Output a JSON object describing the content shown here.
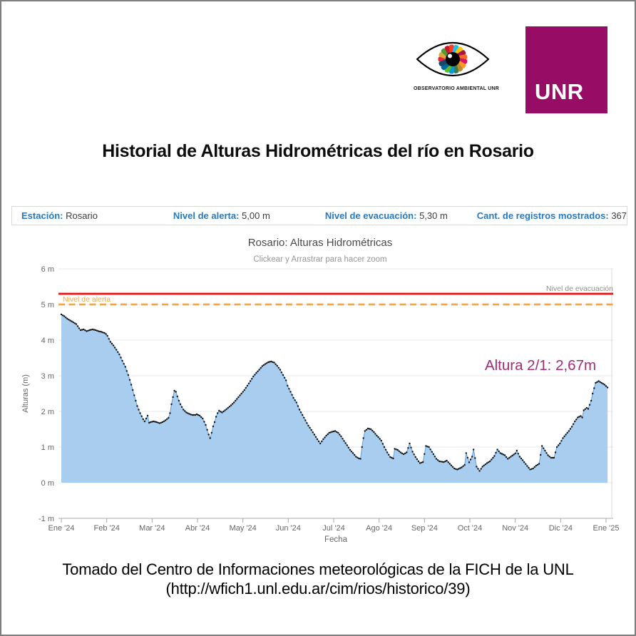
{
  "header": {
    "observatory_logo_caption": "OBSERVATORIO AMBIENTAL UNR",
    "unr_logo_text": "UNR",
    "unr_color": "#970d66"
  },
  "title": "Historial de Alturas Hidrométricas del río en Rosario",
  "info_bar": {
    "label_color": "#2779be",
    "items": [
      {
        "label": "Estación:",
        "value": "Rosario"
      },
      {
        "label": "Nivel de alerta:",
        "value": "5,00 m"
      },
      {
        "label": "Nivel de evacuación:",
        "value": "5,30 m"
      },
      {
        "label": "Cant. de registros mostrados:",
        "value": "367"
      }
    ]
  },
  "chart_data": {
    "type": "area",
    "title": "Rosario: Alturas Hidrométricas",
    "subtitle": "Clickear y Arrastrar para hacer zoom",
    "xlabel": "Fecha",
    "ylabel": "Alturas (m)",
    "ylim": [
      -1,
      6
    ],
    "grid": true,
    "y_ticks": [
      {
        "value": 6,
        "label": "6 m"
      },
      {
        "value": 5,
        "label": "5 m"
      },
      {
        "value": 4,
        "label": "4 m"
      },
      {
        "value": 3,
        "label": "3 m"
      },
      {
        "value": 2,
        "label": "2 m"
      },
      {
        "value": 1,
        "label": "1 m"
      },
      {
        "value": 0,
        "label": "0 m"
      },
      {
        "value": -1,
        "label": "-1 m"
      }
    ],
    "x_ticks": [
      "Ene '24",
      "Feb '24",
      "Mar '24",
      "Abr '24",
      "May '24",
      "Jun '24",
      "Jul '24",
      "Ago '24",
      "Sep '24",
      "Oct '24",
      "Nov '24",
      "Dic '24",
      "Ene '25"
    ],
    "days_per_year": 366,
    "total_points": 367,
    "alert_line": {
      "label": "Nivel de alerta",
      "value": 5.0,
      "color": "#eda84a",
      "style": "dashed"
    },
    "evacuation_line": {
      "label": "Nivel de evacuación",
      "value": 5.3,
      "color": "#fb100d",
      "style": "solid",
      "label_color": "#908f85"
    },
    "annotation": {
      "text": "Altura 2/1: 2,67m",
      "color": "#a02d76"
    },
    "area_fill": "#a8cdef",
    "line_color": "#5f9fdc",
    "dot_color": "#141414",
    "points": [
      [
        0,
        4.72
      ],
      [
        2,
        4.67
      ],
      [
        4,
        4.6
      ],
      [
        6,
        4.55
      ],
      [
        8,
        4.5
      ],
      [
        10,
        4.45
      ],
      [
        12,
        4.33
      ],
      [
        13,
        4.28
      ],
      [
        15,
        4.3
      ],
      [
        17,
        4.25
      ],
      [
        19,
        4.28
      ],
      [
        21,
        4.3
      ],
      [
        23,
        4.28
      ],
      [
        25,
        4.25
      ],
      [
        27,
        4.23
      ],
      [
        29,
        4.2
      ],
      [
        30,
        4.17
      ],
      [
        31,
        4.12
      ],
      [
        33,
        3.95
      ],
      [
        35,
        3.85
      ],
      [
        37,
        3.73
      ],
      [
        39,
        3.6
      ],
      [
        41,
        3.42
      ],
      [
        43,
        3.25
      ],
      [
        45,
        3.02
      ],
      [
        47,
        2.75
      ],
      [
        49,
        2.45
      ],
      [
        51,
        2.15
      ],
      [
        53,
        1.95
      ],
      [
        55,
        1.78
      ],
      [
        56,
        1.72
      ],
      [
        57,
        1.8
      ],
      [
        58,
        1.88
      ],
      [
        59,
        1.68
      ],
      [
        60,
        1.7
      ],
      [
        62,
        1.72
      ],
      [
        64,
        1.7
      ],
      [
        66,
        1.67
      ],
      [
        68,
        1.7
      ],
      [
        70,
        1.75
      ],
      [
        72,
        1.82
      ],
      [
        73,
        1.95
      ],
      [
        74,
        2.2
      ],
      [
        75,
        2.4
      ],
      [
        76,
        2.58
      ],
      [
        77,
        2.55
      ],
      [
        78,
        2.42
      ],
      [
        79,
        2.3
      ],
      [
        80,
        2.2
      ],
      [
        82,
        2.05
      ],
      [
        84,
        1.97
      ],
      [
        86,
        1.93
      ],
      [
        88,
        1.9
      ],
      [
        90,
        1.9
      ],
      [
        91,
        1.92
      ],
      [
        93,
        1.88
      ],
      [
        95,
        1.8
      ],
      [
        97,
        1.62
      ],
      [
        99,
        1.35
      ],
      [
        100,
        1.25
      ],
      [
        101,
        1.4
      ],
      [
        102,
        1.58
      ],
      [
        103,
        1.7
      ],
      [
        104,
        1.85
      ],
      [
        105,
        1.95
      ],
      [
        106,
        2.02
      ],
      [
        108,
        1.97
      ],
      [
        110,
        2.03
      ],
      [
        112,
        2.1
      ],
      [
        114,
        2.17
      ],
      [
        116,
        2.25
      ],
      [
        118,
        2.35
      ],
      [
        120,
        2.45
      ],
      [
        121,
        2.5
      ],
      [
        123,
        2.6
      ],
      [
        125,
        2.72
      ],
      [
        127,
        2.85
      ],
      [
        129,
        2.98
      ],
      [
        131,
        3.08
      ],
      [
        133,
        3.17
      ],
      [
        135,
        3.27
      ],
      [
        137,
        3.33
      ],
      [
        139,
        3.38
      ],
      [
        141,
        3.4
      ],
      [
        143,
        3.37
      ],
      [
        145,
        3.28
      ],
      [
        147,
        3.17
      ],
      [
        149,
        3.02
      ],
      [
        151,
        2.87
      ],
      [
        152,
        2.72
      ],
      [
        154,
        2.55
      ],
      [
        156,
        2.38
      ],
      [
        158,
        2.25
      ],
      [
        160,
        2.05
      ],
      [
        162,
        1.9
      ],
      [
        164,
        1.75
      ],
      [
        166,
        1.6
      ],
      [
        168,
        1.48
      ],
      [
        170,
        1.35
      ],
      [
        172,
        1.22
      ],
      [
        174,
        1.1
      ],
      [
        176,
        1.22
      ],
      [
        178,
        1.32
      ],
      [
        180,
        1.4
      ],
      [
        182,
        1.43
      ],
      [
        184,
        1.45
      ],
      [
        186,
        1.4
      ],
      [
        188,
        1.3
      ],
      [
        190,
        1.17
      ],
      [
        192,
        1.05
      ],
      [
        194,
        0.92
      ],
      [
        196,
        0.83
      ],
      [
        198,
        0.73
      ],
      [
        200,
        0.68
      ],
      [
        201,
        0.67
      ],
      [
        202,
        1.0
      ],
      [
        203,
        1.25
      ],
      [
        204,
        1.45
      ],
      [
        206,
        1.52
      ],
      [
        208,
        1.5
      ],
      [
        210,
        1.42
      ],
      [
        212,
        1.32
      ],
      [
        213,
        1.28
      ],
      [
        215,
        1.18
      ],
      [
        217,
        1.0
      ],
      [
        219,
        0.85
      ],
      [
        221,
        0.72
      ],
      [
        223,
        0.68
      ],
      [
        224,
        0.95
      ],
      [
        226,
        0.92
      ],
      [
        228,
        0.85
      ],
      [
        230,
        0.8
      ],
      [
        232,
        0.85
      ],
      [
        234,
        1.1
      ],
      [
        236,
        0.87
      ],
      [
        238,
        0.72
      ],
      [
        240,
        0.6
      ],
      [
        241,
        0.55
      ],
      [
        243,
        0.58
      ],
      [
        245,
        1.03
      ],
      [
        247,
        1.0
      ],
      [
        250,
        0.8
      ],
      [
        252,
        0.67
      ],
      [
        254,
        0.6
      ],
      [
        257,
        0.58
      ],
      [
        259,
        0.62
      ],
      [
        261,
        0.53
      ],
      [
        264,
        0.4
      ],
      [
        266,
        0.37
      ],
      [
        269,
        0.43
      ],
      [
        271,
        0.5
      ],
      [
        272,
        0.83
      ],
      [
        274,
        0.57
      ],
      [
        276,
        0.73
      ],
      [
        277,
        0.93
      ],
      [
        279,
        0.45
      ],
      [
        281,
        0.33
      ],
      [
        283,
        0.45
      ],
      [
        286,
        0.55
      ],
      [
        288,
        0.6
      ],
      [
        291,
        0.75
      ],
      [
        293,
        0.93
      ],
      [
        295,
        0.83
      ],
      [
        298,
        0.77
      ],
      [
        300,
        0.67
      ],
      [
        302,
        0.73
      ],
      [
        305,
        0.82
      ],
      [
        306,
        0.9
      ],
      [
        308,
        0.73
      ],
      [
        310,
        0.63
      ],
      [
        313,
        0.47
      ],
      [
        315,
        0.37
      ],
      [
        317,
        0.4
      ],
      [
        319,
        0.48
      ],
      [
        321,
        0.53
      ],
      [
        323,
        1.03
      ],
      [
        325,
        0.9
      ],
      [
        327,
        0.77
      ],
      [
        329,
        0.7
      ],
      [
        331,
        0.7
      ],
      [
        333,
        1.0
      ],
      [
        335,
        1.1
      ],
      [
        337,
        1.25
      ],
      [
        339,
        1.35
      ],
      [
        341,
        1.45
      ],
      [
        343,
        1.57
      ],
      [
        345,
        1.72
      ],
      [
        347,
        1.83
      ],
      [
        349,
        1.87
      ],
      [
        350,
        1.83
      ],
      [
        351,
        2.03
      ],
      [
        353,
        2.1
      ],
      [
        354,
        2.07
      ],
      [
        356,
        2.3
      ],
      [
        357,
        2.5
      ],
      [
        358,
        2.65
      ],
      [
        359,
        2.8
      ],
      [
        361,
        2.85
      ],
      [
        363,
        2.8
      ],
      [
        365,
        2.75
      ],
      [
        367,
        2.67
      ]
    ]
  },
  "footer": {
    "line1": "Tomado del Centro de Informaciones meteorológicas de la FICH de la UNL",
    "line2": "(http://wfich1.unl.edu.ar/cim/rios/historico/39)"
  }
}
